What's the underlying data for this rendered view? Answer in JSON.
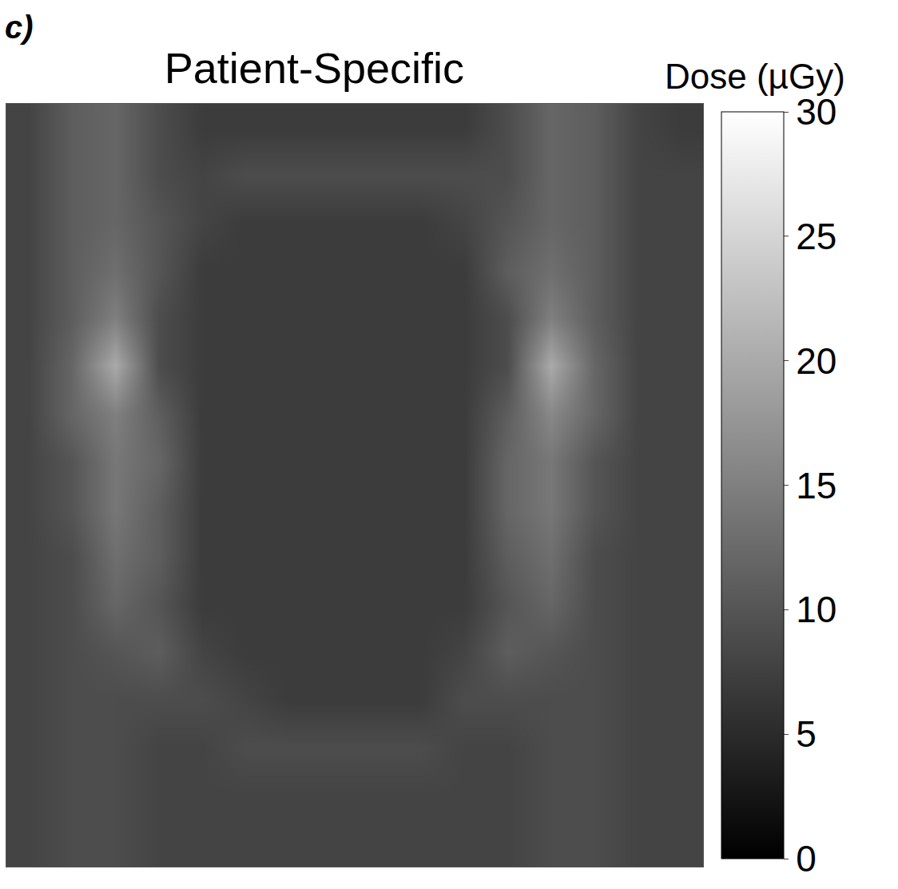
{
  "chart_data": {
    "type": "heatmap",
    "title": "Patient-Specific",
    "panel_label": "c)",
    "color": "grey",
    "tick_labels": false,
    "xlim": [
      -0.5,
      15.5
    ],
    "ylim": [
      15.5,
      -0.5
    ],
    "cells": [
      [
        8,
        11,
        12,
        9,
        7,
        7,
        7,
        7,
        7,
        7,
        7,
        9,
        12,
        11,
        8,
        7
      ],
      [
        8,
        11,
        12,
        9,
        8,
        9,
        9,
        9,
        9,
        9,
        9,
        9,
        12,
        11,
        8,
        8
      ],
      [
        8,
        11,
        12,
        10,
        8,
        7,
        7,
        7,
        7,
        7,
        8,
        10,
        12,
        11,
        8,
        8
      ],
      [
        8,
        11,
        13,
        10,
        7,
        7,
        7,
        7,
        7,
        7,
        7,
        11,
        13,
        11,
        8,
        8
      ],
      [
        8,
        11,
        15,
        9,
        7,
        7,
        7,
        7,
        7,
        7,
        7,
        9,
        15,
        11,
        8,
        8
      ],
      [
        8,
        12,
        20,
        9,
        7,
        7,
        7,
        7,
        7,
        7,
        7,
        9,
        20,
        12,
        8,
        8
      ],
      [
        8,
        12,
        15,
        11,
        7,
        7,
        7,
        7,
        7,
        7,
        7,
        11,
        16,
        12,
        8,
        8
      ],
      [
        8,
        10,
        14,
        12,
        7,
        7,
        7,
        7,
        7,
        7,
        7,
        12,
        14,
        10,
        8,
        8
      ],
      [
        8,
        10,
        14,
        11,
        7,
        7,
        7,
        7,
        7,
        7,
        7,
        12,
        14,
        10,
        8,
        8
      ],
      [
        8,
        9,
        13,
        11,
        7,
        7,
        7,
        7,
        7,
        7,
        7,
        11,
        13,
        9,
        8,
        8
      ],
      [
        8,
        9,
        12,
        10,
        7,
        7,
        7,
        7,
        7,
        7,
        7,
        10,
        12,
        9,
        8,
        8
      ],
      [
        8,
        9,
        10,
        11,
        8,
        7,
        7,
        7,
        7,
        7,
        8,
        11,
        10,
        9,
        8,
        8
      ],
      [
        8,
        9,
        9,
        9,
        9,
        8,
        7,
        7,
        7,
        7,
        9,
        9,
        9,
        9,
        8,
        8
      ],
      [
        8,
        9,
        9,
        8,
        8,
        9,
        9,
        9,
        9,
        9,
        8,
        8,
        9,
        9,
        8,
        8
      ],
      [
        8,
        9,
        9,
        8,
        8,
        8,
        8,
        8,
        8,
        8,
        8,
        8,
        9,
        9,
        8,
        8
      ],
      [
        8,
        9,
        9,
        8,
        8,
        8,
        8,
        8,
        8,
        8,
        8,
        8,
        9,
        9,
        8,
        8
      ]
    ],
    "colorbar": {
      "title": "Dose (µGy)",
      "range": [
        0,
        30
      ],
      "ticks": [
        0,
        5,
        10,
        15,
        20,
        25,
        30
      ]
    }
  }
}
